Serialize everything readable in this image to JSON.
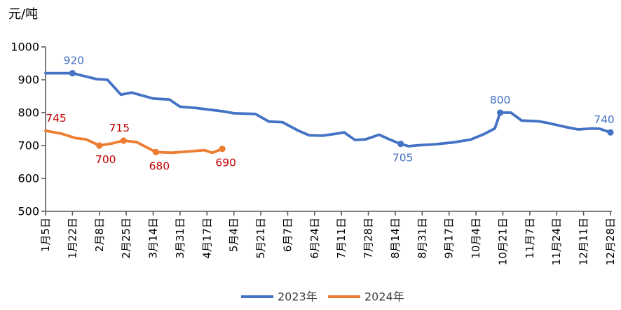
{
  "chart_data": {
    "type": "line",
    "title": "",
    "ylabel": "元/吨",
    "xlabel": "",
    "ylim": [
      500,
      1000
    ],
    "y_ticks": [
      1000,
      900,
      800,
      700,
      600,
      500
    ],
    "x_tick_labels": [
      "1月5日",
      "1月22日",
      "2月8日",
      "2月25日",
      "3月14日",
      "3月31日",
      "4月17日",
      "5月4日",
      "5月21日",
      "6月7日",
      "6月24日",
      "7月11日",
      "7月28日",
      "8月14日",
      "8月31日",
      "9月17日",
      "10月4日",
      "10月21日",
      "11月7日",
      "11月24日",
      "12月11日",
      "12月28日"
    ],
    "grid": false,
    "legend_position": "bottom-center",
    "series": [
      {
        "id": "2023",
        "name": "2023年",
        "color": "#4472C4",
        "label_color": "#4472C4",
        "points": [
          [
            0,
            920
          ],
          [
            1,
            920
          ],
          [
            1.5,
            910
          ],
          [
            1.9,
            902
          ],
          [
            2.3,
            900
          ],
          [
            2.8,
            855
          ],
          [
            3.2,
            861
          ],
          [
            4.0,
            843
          ],
          [
            4.6,
            840
          ],
          [
            5.0,
            818
          ],
          [
            5.6,
            814
          ],
          [
            6.1,
            809
          ],
          [
            6.6,
            804
          ],
          [
            7.0,
            798
          ],
          [
            7.8,
            796
          ],
          [
            8.3,
            773
          ],
          [
            8.8,
            771
          ],
          [
            9.4,
            745
          ],
          [
            9.8,
            731
          ],
          [
            10.3,
            730
          ],
          [
            10.7,
            735
          ],
          [
            11.1,
            740
          ],
          [
            11.5,
            717
          ],
          [
            11.9,
            719
          ],
          [
            12.4,
            733
          ],
          [
            12.8,
            718
          ],
          [
            13.2,
            705
          ],
          [
            13.5,
            698
          ],
          [
            13.9,
            701
          ],
          [
            14.5,
            704
          ],
          [
            15.2,
            710
          ],
          [
            15.8,
            718
          ],
          [
            16.3,
            735
          ],
          [
            16.7,
            752
          ],
          [
            16.9,
            800
          ],
          [
            17.3,
            800
          ],
          [
            17.7,
            776
          ],
          [
            18.3,
            774
          ],
          [
            18.6,
            770
          ],
          [
            19.3,
            757
          ],
          [
            19.8,
            749
          ],
          [
            20.3,
            752
          ],
          [
            20.6,
            751
          ],
          [
            21,
            740
          ]
        ],
        "markers": [
          {
            "x": 1,
            "y": 920,
            "label": "920",
            "pos": "above",
            "dot": true,
            "label_dx": 2
          },
          {
            "x": 13.2,
            "y": 705,
            "label": "705",
            "pos": "below",
            "dot": true,
            "label_dx": 3
          },
          {
            "x": 16.9,
            "y": 800,
            "label": "800",
            "pos": "above",
            "dot": true,
            "label_dx": 0
          },
          {
            "x": 21,
            "y": 740,
            "label": "740",
            "pos": "above",
            "dot": true,
            "label_dx": -9
          }
        ]
      },
      {
        "id": "2024",
        "name": "2024年",
        "color": "#ED7D31",
        "label_color": "#C00000",
        "points": [
          [
            0,
            745
          ],
          [
            0.6,
            736
          ],
          [
            1.1,
            723
          ],
          [
            1.5,
            719
          ],
          [
            2.0,
            700
          ],
          [
            2.5,
            707
          ],
          [
            2.9,
            715
          ],
          [
            3.4,
            710
          ],
          [
            4.1,
            680
          ],
          [
            4.7,
            678
          ],
          [
            5.3,
            682
          ],
          [
            5.9,
            686
          ],
          [
            6.2,
            678
          ],
          [
            6.57,
            690
          ]
        ],
        "markers": [
          {
            "x": 0,
            "y": 745,
            "label": "745",
            "pos": "above",
            "dot": false,
            "label_dx": 15
          },
          {
            "x": 2,
            "y": 700,
            "label": "700",
            "pos": "below",
            "dot": true,
            "label_dx": 9
          },
          {
            "x": 2.9,
            "y": 715,
            "label": "715",
            "pos": "above",
            "dot": true,
            "label_dx": -6
          },
          {
            "x": 4.1,
            "y": 680,
            "label": "680",
            "pos": "below",
            "dot": true,
            "label_dx": 5
          },
          {
            "x": 6.57,
            "y": 690,
            "label": "690",
            "pos": "below",
            "dot": true,
            "label_dx": 5
          }
        ]
      }
    ]
  },
  "colors": {
    "axis": "#595959",
    "tick_label": "#000000",
    "unit_label": "#000000",
    "legend_text": "#404040",
    "background": "#FFFFFF"
  }
}
